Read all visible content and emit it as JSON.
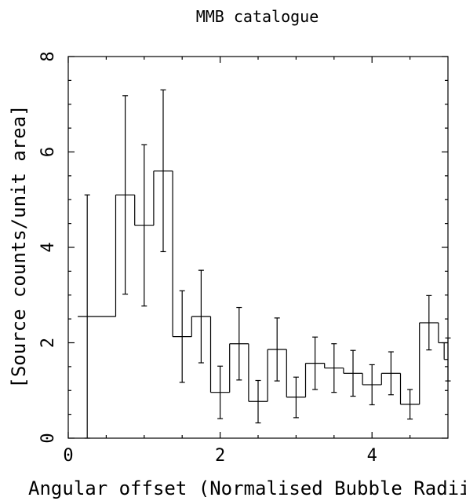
{
  "chart_data": {
    "type": "histogram-step-with-error-bars",
    "title": "MMB catalogue",
    "xlabel": "Angular offset (Normalised Bubble Radii)",
    "ylabel": "[Source counts/unit area]",
    "xlim": [
      0,
      5
    ],
    "ylim": [
      0,
      8
    ],
    "x_ticks": [
      0,
      2,
      4
    ],
    "y_ticks": [
      0,
      2,
      4,
      6,
      8
    ],
    "grid": false,
    "bin_edges": [
      0.125,
      0.625,
      0.875,
      1.125,
      1.375,
      1.625,
      1.875,
      2.125,
      2.375,
      2.625,
      2.875,
      3.125,
      3.375,
      3.625,
      3.875,
      4.125,
      4.375,
      4.625,
      4.875,
      5.0
    ],
    "bins": [
      {
        "x_start": 0.125,
        "x_end": 0.625,
        "x_center": 0.25,
        "value": 2.55,
        "error_low": 0.0,
        "error_high": 5.1
      },
      {
        "x_start": 0.625,
        "x_end": 0.875,
        "x_center": 0.75,
        "value": 5.1,
        "error_low": 3.02,
        "error_high": 7.18
      },
      {
        "x_start": 0.875,
        "x_end": 1.125,
        "x_center": 1.0,
        "value": 4.46,
        "error_low": 2.77,
        "error_high": 6.15
      },
      {
        "x_start": 1.125,
        "x_end": 1.375,
        "x_center": 1.25,
        "value": 5.6,
        "error_low": 3.91,
        "error_high": 7.3
      },
      {
        "x_start": 1.375,
        "x_end": 1.625,
        "x_center": 1.5,
        "value": 2.13,
        "error_low": 1.17,
        "error_high": 3.09
      },
      {
        "x_start": 1.625,
        "x_end": 1.875,
        "x_center": 1.75,
        "value": 2.55,
        "error_low": 1.58,
        "error_high": 3.52
      },
      {
        "x_start": 1.875,
        "x_end": 2.125,
        "x_center": 2.0,
        "value": 0.96,
        "error_low": 0.41,
        "error_high": 1.51
      },
      {
        "x_start": 2.125,
        "x_end": 2.375,
        "x_center": 2.25,
        "value": 1.98,
        "error_low": 1.22,
        "error_high": 2.74
      },
      {
        "x_start": 2.375,
        "x_end": 2.625,
        "x_center": 2.5,
        "value": 0.77,
        "error_low": 0.32,
        "error_high": 1.21
      },
      {
        "x_start": 2.625,
        "x_end": 2.875,
        "x_center": 2.75,
        "value": 1.86,
        "error_low": 1.2,
        "error_high": 2.52
      },
      {
        "x_start": 2.875,
        "x_end": 3.125,
        "x_center": 3.0,
        "value": 0.86,
        "error_low": 0.43,
        "error_high": 1.28
      },
      {
        "x_start": 3.125,
        "x_end": 3.375,
        "x_center": 3.25,
        "value": 1.57,
        "error_low": 1.02,
        "error_high": 2.12
      },
      {
        "x_start": 3.375,
        "x_end": 3.625,
        "x_center": 3.5,
        "value": 1.47,
        "error_low": 0.96,
        "error_high": 1.98
      },
      {
        "x_start": 3.625,
        "x_end": 3.875,
        "x_center": 3.75,
        "value": 1.36,
        "error_low": 0.88,
        "error_high": 1.84
      },
      {
        "x_start": 3.875,
        "x_end": 4.125,
        "x_center": 4.0,
        "value": 1.12,
        "error_low": 0.7,
        "error_high": 1.54
      },
      {
        "x_start": 4.125,
        "x_end": 4.375,
        "x_center": 4.25,
        "value": 1.36,
        "error_low": 0.91,
        "error_high": 1.81
      },
      {
        "x_start": 4.375,
        "x_end": 4.625,
        "x_center": 4.5,
        "value": 0.71,
        "error_low": 0.4,
        "error_high": 1.02
      },
      {
        "x_start": 4.625,
        "x_end": 4.875,
        "x_center": 4.75,
        "value": 2.42,
        "error_low": 1.85,
        "error_high": 2.99
      },
      {
        "x_start": 4.875,
        "x_end": 5.0,
        "x_center": 5.0,
        "value": 2.0,
        "error_low": 1.2,
        "error_high": 2.1
      }
    ],
    "final_partial_step": {
      "x_start": 4.95,
      "x_end": 5.0,
      "value": 1.65
    }
  }
}
